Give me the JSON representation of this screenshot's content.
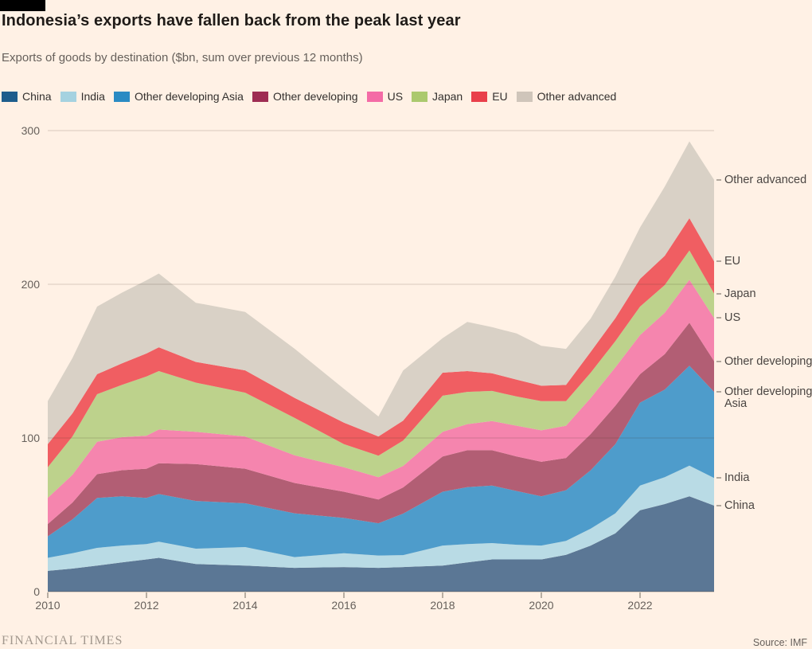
{
  "header": {
    "title": "Indonesia’s exports have fallen back from the peak last year",
    "subtitle": "Exports of goods by destination ($bn, sum over previous 12 months)"
  },
  "colors": {
    "background": "#fff1e5",
    "black_bar": "#000000",
    "grid": "rgba(60,45,30,0.20)",
    "baseline": "rgba(60,45,30,0.35)",
    "tick": "#a1978c",
    "axis_text": "#66605b",
    "right_label_text": "#4a4542"
  },
  "chart_data": {
    "type": "area",
    "stacked": true,
    "title": "Indonesia’s exports have fallen back from the peak last year",
    "subtitle": "Exports of goods by destination ($bn, sum over previous 12 months)",
    "ylim": [
      0,
      300
    ],
    "xlim": [
      2010,
      2023.5
    ],
    "y_ticks": [
      0,
      100,
      200,
      300
    ],
    "x_ticks": [
      2010,
      2012,
      2014,
      2016,
      2018,
      2020,
      2022
    ],
    "grid": true,
    "legend_position": "top",
    "x": [
      2010,
      2010.5,
      2011,
      2011.5,
      2012,
      2012.25,
      2013,
      2014,
      2015,
      2016,
      2016.7,
      2017.2,
      2018,
      2018.5,
      2019,
      2019.5,
      2020,
      2020.5,
      2021,
      2021.5,
      2022,
      2022.5,
      2023,
      2023.5
    ],
    "series": [
      {
        "name": "China",
        "area_color": "#5b7795",
        "swatch_color": "#1d5d8c",
        "values": [
          13.5,
          15,
          17,
          19,
          21,
          22,
          18,
          17,
          15.5,
          16,
          15.5,
          16,
          17,
          19,
          21,
          21,
          21,
          24,
          30,
          38,
          53,
          57,
          62,
          56
        ]
      },
      {
        "name": "India",
        "area_color": "#b9dbe5",
        "swatch_color": "#a5d2e0",
        "values": [
          8.5,
          10,
          11.5,
          11,
          10,
          10.5,
          10,
          12,
          7,
          9,
          8,
          7.8,
          13,
          12,
          10.6,
          9.5,
          9,
          9,
          11,
          13,
          16,
          17.5,
          20,
          18
        ]
      },
      {
        "name": "Other developing Asia",
        "area_color": "#4e9ccb",
        "swatch_color": "#2a8bc3",
        "values": [
          14,
          22,
          32.5,
          32,
          30,
          31,
          31,
          28.5,
          28.5,
          23,
          21,
          27,
          35,
          37,
          37.4,
          35,
          32,
          33,
          38,
          45,
          54,
          57,
          65,
          56
        ]
      },
      {
        "name": "Other developing",
        "area_color": "#b25e74",
        "swatch_color": "#9e2d53",
        "values": [
          8,
          11,
          15.5,
          17,
          19,
          20,
          24,
          22.5,
          19.7,
          17,
          15.5,
          17,
          23,
          24,
          23,
          22.5,
          22.5,
          21,
          23.6,
          25,
          18.5,
          23,
          28,
          20
        ]
      },
      {
        "name": "US",
        "area_color": "#f585ae",
        "swatch_color": "#f46ba6",
        "values": [
          17,
          18,
          21,
          21.5,
          21.5,
          22,
          21,
          21,
          18,
          16,
          14.5,
          14,
          16,
          17,
          19,
          20,
          20.5,
          21,
          23.4,
          25,
          25.5,
          27,
          28,
          28
        ]
      },
      {
        "name": "Japan",
        "area_color": "#bdd28c",
        "swatch_color": "#abc96e",
        "values": [
          20,
          25,
          31,
          34,
          38.5,
          38,
          32,
          28.5,
          24.4,
          15,
          14,
          16.5,
          23.5,
          21,
          19.6,
          19,
          19,
          16,
          16.5,
          17,
          18.5,
          18,
          19,
          16
        ]
      },
      {
        "name": "EU",
        "area_color": "#f05e62",
        "swatch_color": "#e9404b",
        "values": [
          15,
          15,
          13,
          14,
          15,
          15.5,
          13.5,
          14.5,
          13,
          14,
          12.5,
          13,
          15,
          13.5,
          11.5,
          11,
          10,
          10.5,
          13.5,
          15,
          18,
          19,
          21,
          21
        ]
      },
      {
        "name": "Other advanced",
        "area_color": "#d9d1c6",
        "swatch_color": "#cfc5ba",
        "values": [
          28,
          36,
          44,
          46,
          47.6,
          48,
          38.5,
          38,
          32,
          22,
          13,
          32.6,
          22.5,
          32,
          30,
          30,
          26,
          23.5,
          21.7,
          27,
          33.5,
          45,
          50,
          53
        ]
      }
    ]
  },
  "footer": {
    "brand": "FINANCIAL TIMES",
    "source": "Source: IMF"
  }
}
